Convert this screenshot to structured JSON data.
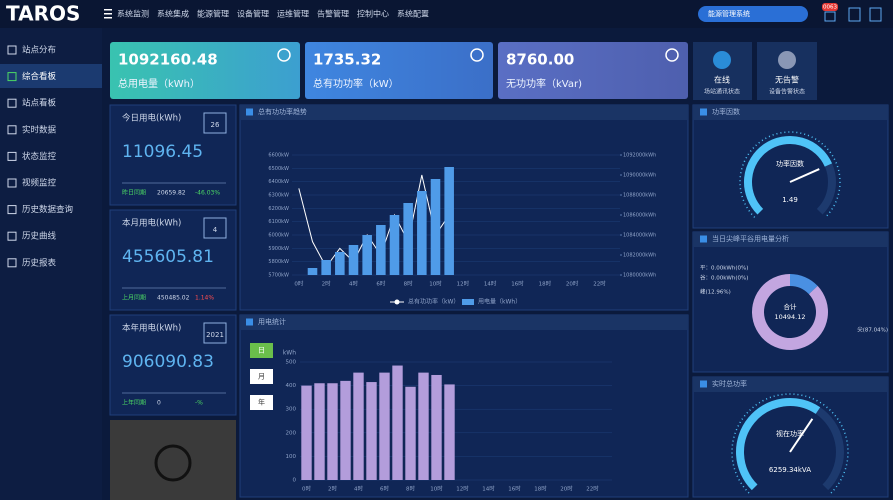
{
  "header": {
    "logo": "TAROS",
    "menu": [
      "系统监测",
      "系统集成",
      "能源管理",
      "设备管理",
      "运维管理",
      "告警管理",
      "控制中心",
      "系统配置"
    ],
    "search": "能源管理系统",
    "badge": "0063"
  },
  "sidebar": [
    "站点分布",
    "综合看板",
    "站点看板",
    "实时数据",
    "状态监控",
    "视频监控",
    "历史数据查询",
    "历史曲线",
    "历史报表"
  ],
  "cards": [
    {
      "value": "1092160.48",
      "label": "总用电量（kWh）"
    },
    {
      "value": "1735.32",
      "label": "总有功功率（kW）"
    },
    {
      "value": "8760.00",
      "label": "无功功率（kVar)"
    }
  ],
  "status": [
    {
      "title": "在线",
      "sub": "场站通讯状态"
    },
    {
      "title": "无告警",
      "sub": "设备告警状态"
    }
  ],
  "stats": [
    {
      "title": "今日用电(kWh)",
      "badge": "26",
      "value": "11096.45",
      "compare": "昨日同期",
      "prev": "20659.82",
      "change": "-46.03%",
      "change_color": "#4cd964"
    },
    {
      "title": "本月用电(kWh)",
      "badge": "4",
      "value": "455605.81",
      "compare": "上月同期",
      "prev": "450485.02",
      "change": "1.14%",
      "change_color": "#ff4d4f"
    },
    {
      "title": "本年用电(kWh)",
      "badge": "2021",
      "value": "906090.83",
      "compare": "上年同期",
      "prev": "0",
      "change": "-%",
      "change_color": "#4cd964"
    }
  ],
  "chart_data": [
    {
      "type": "combo",
      "title": "总有功功率趋势",
      "categories": [
        "0时",
        null,
        "2时",
        null,
        "4时",
        null,
        "6时",
        null,
        "8时",
        null,
        "10时",
        null,
        "12时",
        null,
        "14时",
        null,
        "16时",
        null,
        "18时",
        null,
        "20时",
        null,
        "22时",
        null
      ],
      "series": [
        {
          "name": "总有功功率（kW）",
          "type": "line",
          "color": "#ffffff",
          "values": [
            6350,
            5950,
            5760,
            5900,
            5800,
            6000,
            5850,
            6150,
            5950,
            6450,
            6000,
            6150,
            null,
            null,
            null,
            null,
            null,
            null,
            null,
            null,
            null,
            null,
            null,
            null
          ]
        },
        {
          "name": "用电量（kWh）",
          "type": "bar",
          "axis": "y2",
          "color": "#4f9be8",
          "values": [
            null,
            1080700,
            1081500,
            1082300,
            1083000,
            1084000,
            1085000,
            1086000,
            1087200,
            1088400,
            1089600,
            1090800,
            null,
            null,
            null,
            null,
            null,
            null,
            null,
            null,
            null,
            null,
            null,
            null
          ]
        }
      ],
      "ylim": [
        5700,
        6600
      ],
      "yticks": [
        {
          "value": 5700,
          "label": "5700kW"
        },
        {
          "value": 5800,
          "label": "5800kW"
        },
        {
          "value": 5900,
          "label": "5900kW"
        },
        {
          "value": 6000,
          "label": "6000kW"
        },
        {
          "value": 6100,
          "label": "6100kW"
        },
        {
          "value": 6200,
          "label": "6200kW"
        },
        {
          "value": 6300,
          "label": "6300kW"
        },
        {
          "value": 6400,
          "label": "6400kW"
        },
        {
          "value": 6500,
          "label": "6500kW"
        },
        {
          "value": 6600,
          "label": "6600kW"
        }
      ],
      "y2lim": [
        1080000,
        1092000
      ],
      "y2ticks": [
        {
          "value": 1080000,
          "label": "1080000kWh"
        },
        {
          "value": 1082000,
          "label": "1082000kWh"
        },
        {
          "value": 1084000,
          "label": "1084000kWh"
        },
        {
          "value": 1086000,
          "label": "1086000kWh"
        },
        {
          "value": 1088000,
          "label": "1088000kWh"
        },
        {
          "value": 1090000,
          "label": "1090000kWh"
        },
        {
          "value": 1092000,
          "label": "1092000kWh"
        }
      ],
      "grid": true
    },
    {
      "type": "bar",
      "title": "用电统计",
      "buttons": [
        "日",
        "月",
        "年"
      ],
      "unit": "kWh",
      "categories": [
        "0时",
        null,
        "2时",
        null,
        "4时",
        null,
        "6时",
        null,
        "8时",
        null,
        "10时",
        null,
        "12时",
        null,
        "14时",
        null,
        "16时",
        null,
        "18时",
        null,
        "20时",
        null,
        "22时",
        null
      ],
      "values": [
        400,
        410,
        410,
        420,
        455,
        415,
        455,
        485,
        395,
        455,
        445,
        405,
        null,
        null,
        null,
        null,
        null,
        null,
        null,
        null,
        null,
        null,
        null,
        null
      ],
      "color": "#b39ddb",
      "ylim": [
        0,
        500
      ],
      "yticks": [
        0,
        100,
        200,
        300,
        400,
        500
      ],
      "grid": true
    },
    {
      "type": "gauge",
      "title": "功率因数",
      "label": "功率因数",
      "value": 1.49,
      "range": [
        0,
        2
      ],
      "color": "#4fc3f7"
    },
    {
      "type": "pie",
      "title": "当日尖峰平谷用电量分析",
      "categories": [
        "平",
        "谷",
        "峰",
        "尖"
      ],
      "values": [
        0,
        0,
        12.96,
        87.04
      ],
      "value_labels": [
        "平：0.00kWh(0%)",
        "谷：0.00kWh(0%)",
        "峰(12.96%)",
        "尖(87.04%)"
      ],
      "colors": [
        "#4fc3f7",
        "#81c784",
        "#4a90e2",
        "#c3a6e0"
      ],
      "center_label": "合计",
      "center_value": "10494.12"
    },
    {
      "type": "gauge",
      "title": "实时总功率",
      "label": "视在功率",
      "value": 6259.34,
      "value_label": "6259.34kVA",
      "range": [
        0,
        10000
      ],
      "color": "#4fc3f7"
    }
  ]
}
